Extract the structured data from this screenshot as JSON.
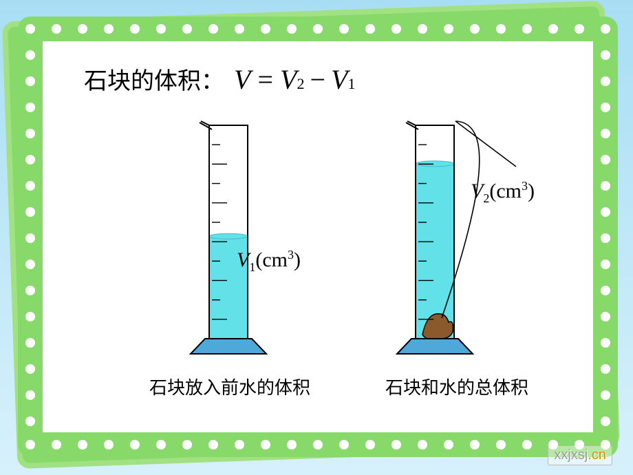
{
  "background": {
    "sky_gradient_top": "#a8def4",
    "sky_gradient_bottom": "#d7f1fb",
    "card_border_color": "#87d96a",
    "card_inner_color": "#ffffff",
    "dot_color": "#ffffff"
  },
  "title": {
    "label": "石块的体积：",
    "formula_V": "V",
    "formula_eq": " = ",
    "formula_V2": "V",
    "formula_sub2": "2",
    "formula_minus": " − ",
    "formula_V1": "V",
    "formula_sub1": "1",
    "font_size": 34,
    "formula_font_size": 40
  },
  "cylinders": {
    "left": {
      "caption": "石块放入前水的体积",
      "label_prefix": "V",
      "label_sub": "1",
      "label_unit": "(cm",
      "label_sup": "3",
      "label_close": ")",
      "water_fill_ratio": 0.48,
      "has_stone": false
    },
    "right": {
      "caption": "石块和水的总体积",
      "label_prefix": "V",
      "label_sub": "2",
      "label_unit": "(cm",
      "label_sup": "3",
      "label_close": ")",
      "water_fill_ratio": 0.82,
      "has_stone": true
    },
    "style": {
      "outline_color": "#000000",
      "water_color": "#63e1e8",
      "base_color": "#4ea8d8",
      "stone_color": "#8a5a2c",
      "tick_count": 10,
      "body_height": 310,
      "body_width": 56,
      "base_width": 110,
      "base_height": 22
    }
  },
  "watermark": {
    "text_main": "xxjxsj",
    "text_suffix": ".cn"
  }
}
